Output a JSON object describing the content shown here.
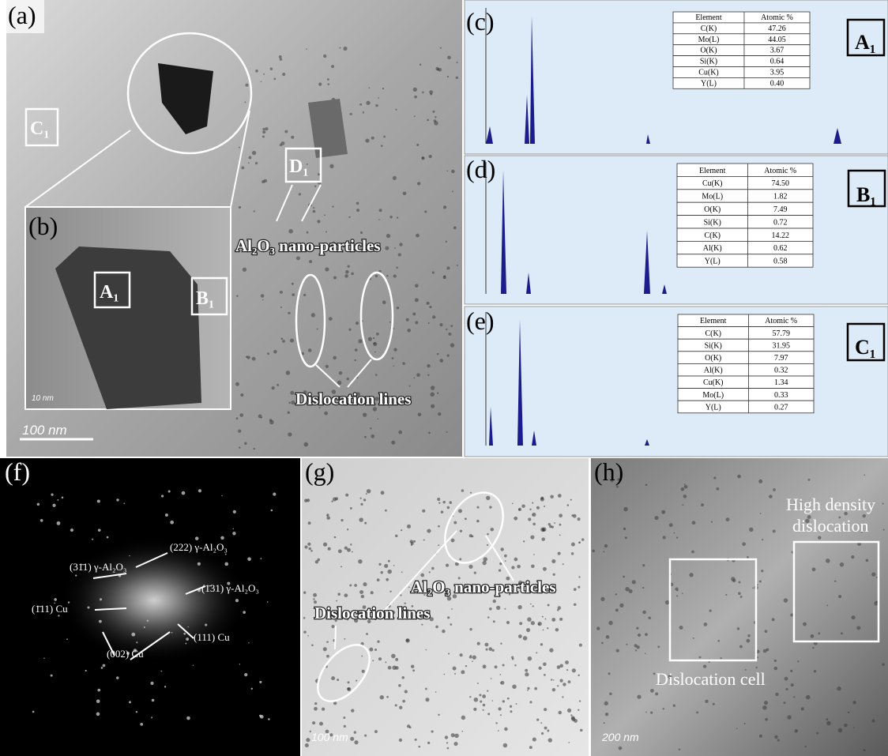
{
  "panels": {
    "a": {
      "label": "(a)",
      "marker_c": "C₁",
      "marker_d": "D₁",
      "annotation_particles": "Al₂O₃ nano-particles",
      "annotation_dislocations": "Dislocation lines",
      "scale_bar": "100 nm"
    },
    "b": {
      "label": "(b)",
      "marker_a": "A₁",
      "marker_b": "B₁",
      "scale_bar": "10 nm"
    },
    "c": {
      "label": "(c)",
      "spot": "A₁",
      "table": {
        "header": [
          "Element",
          "Atomic %"
        ],
        "rows": [
          [
            "C(K)",
            "47.26"
          ],
          [
            "Mo(L)",
            "44.05"
          ],
          [
            "O(K)",
            "3.67"
          ],
          [
            "Si(K)",
            "0.64"
          ],
          [
            "Cu(K)",
            "3.95"
          ],
          [
            "Y(L)",
            "0.40"
          ]
        ]
      }
    },
    "d": {
      "label": "(d)",
      "spot": "B₁",
      "table": {
        "header": [
          "Element",
          "Atomic %"
        ],
        "rows": [
          [
            "Cu(K)",
            "74.50"
          ],
          [
            "Mo(L)",
            "1.82"
          ],
          [
            "O(K)",
            "7.49"
          ],
          [
            "Si(K)",
            "0.72"
          ],
          [
            "C(K)",
            "14.22"
          ],
          [
            "Al(K)",
            "0.62"
          ],
          [
            "Y(L)",
            "0.58"
          ]
        ]
      }
    },
    "e": {
      "label": "(e)",
      "spot": "C₁",
      "table": {
        "header": [
          "Element",
          "Atomic %"
        ],
        "rows": [
          [
            "C(K)",
            "57.79"
          ],
          [
            "Si(K)",
            "31.95"
          ],
          [
            "O(K)",
            "7.97"
          ],
          [
            "Al(K)",
            "0.32"
          ],
          [
            "Cu(K)",
            "1.34"
          ],
          [
            "Mo(L)",
            "0.33"
          ],
          [
            "Y(L)",
            "0.27"
          ]
        ]
      }
    },
    "f": {
      "label": "(f)",
      "spots": [
        "(222) γ-Al₂O₃",
        "(31̄1) γ-Al₂O₃",
        "(1̄31) γ-Al₂O₃",
        "(1̄11) Cu",
        "(111) Cu",
        "(002) Cu"
      ]
    },
    "g": {
      "label": "(g)",
      "annotation_particles": "Al₂O₃ nano-particles",
      "annotation_dislocations": "Dislocation lines",
      "scale_bar": "100 nm"
    },
    "h": {
      "label": "(h)",
      "annotation_high_1": "High density",
      "annotation_high_2": "dislocation",
      "annotation_cell": "Dislocation cell",
      "scale_bar": "200 nm"
    }
  }
}
